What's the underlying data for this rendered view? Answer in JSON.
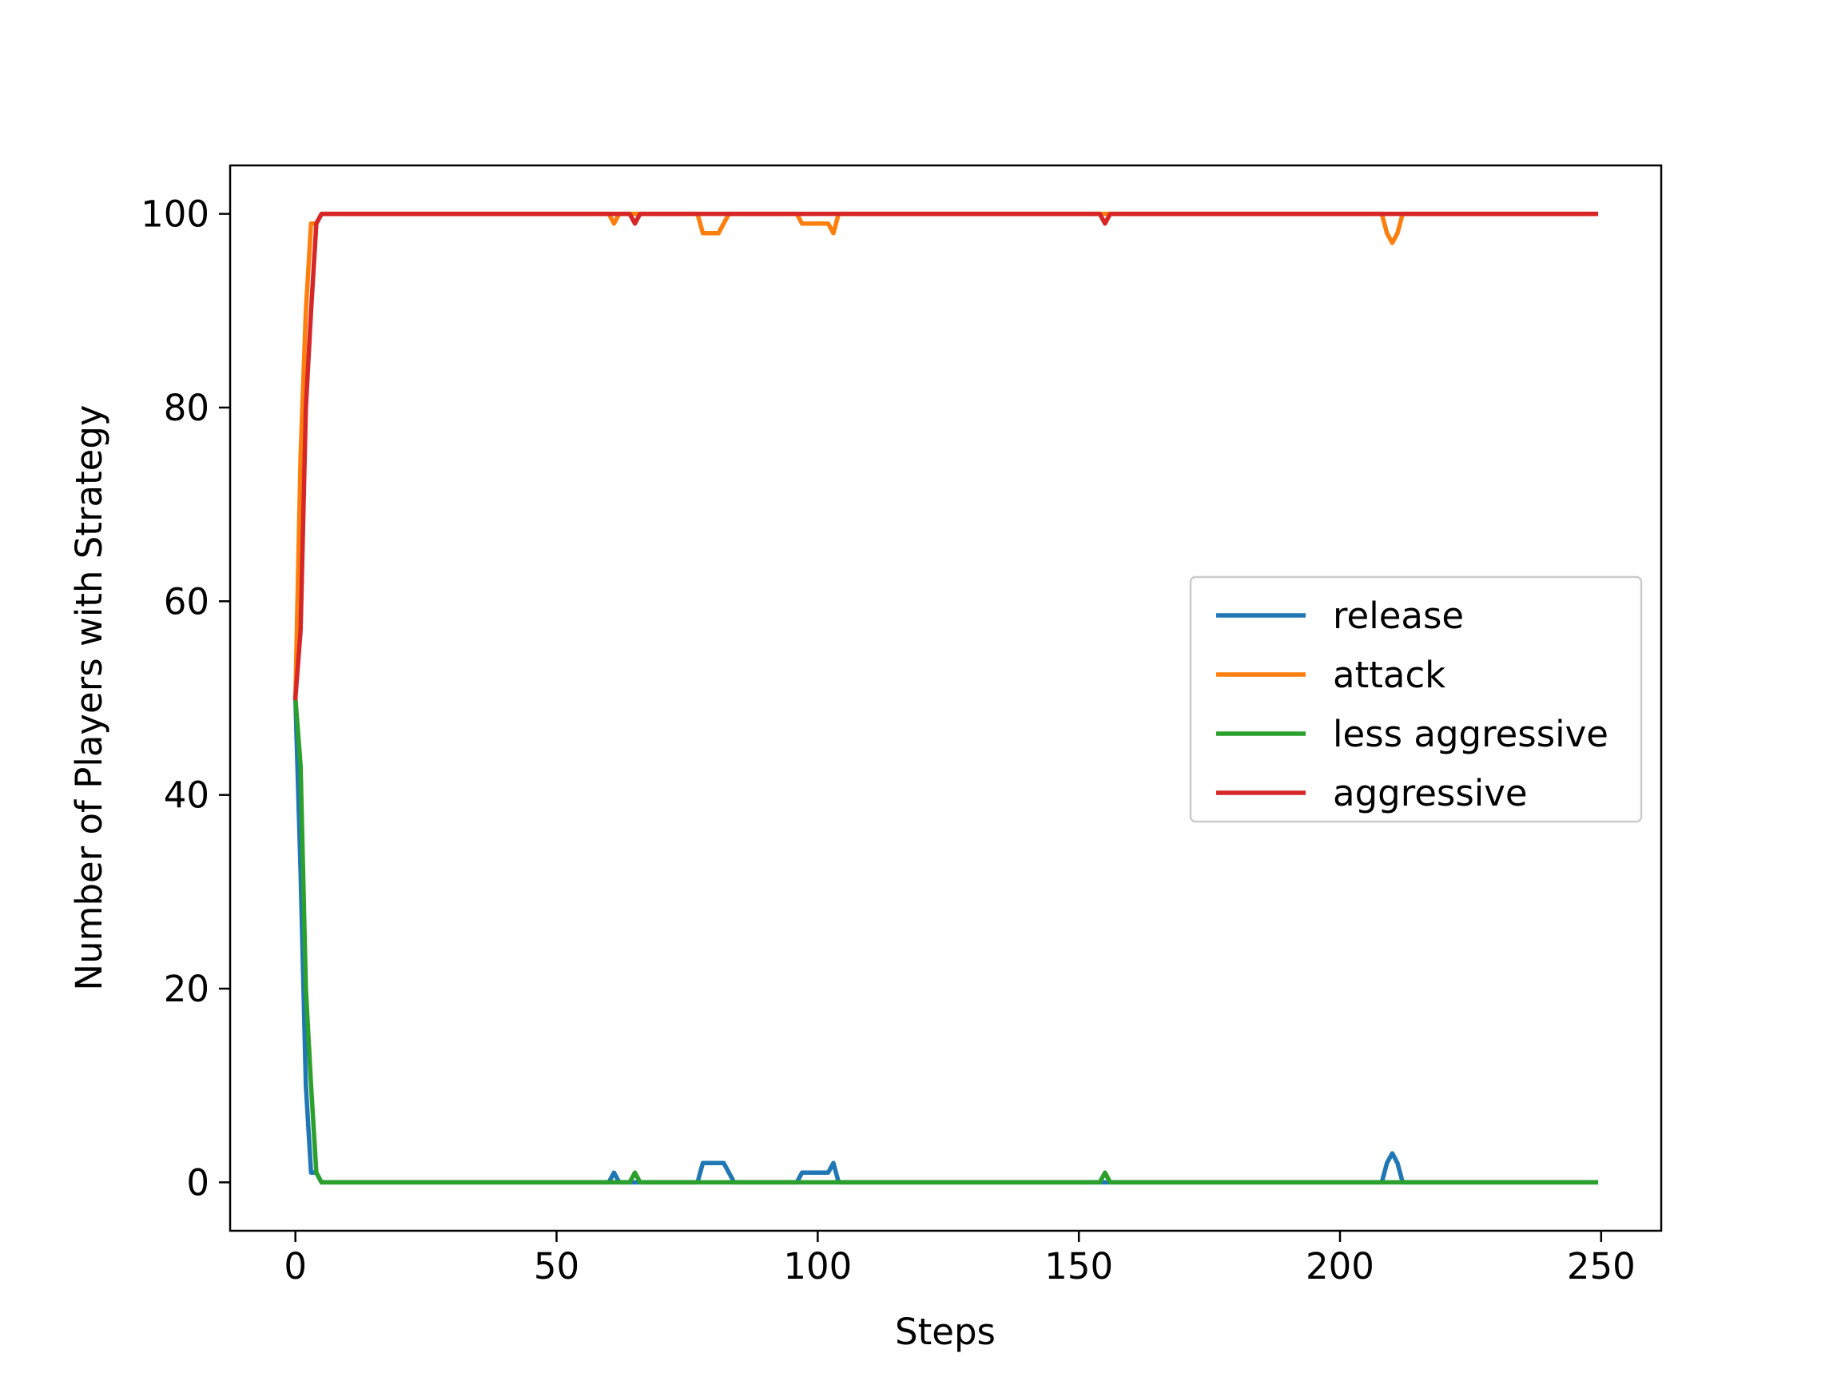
{
  "chart_data": {
    "type": "line",
    "xlabel": "Steps",
    "ylabel": "Number of Players with Strategy",
    "xlim": [
      -12.5,
      261.5
    ],
    "ylim": [
      -5,
      105
    ],
    "xticks": [
      0,
      50,
      100,
      150,
      200,
      250
    ],
    "yticks": [
      0,
      20,
      40,
      60,
      80,
      100
    ],
    "legend_position": "center-right",
    "grid": false,
    "series": [
      {
        "name": "release",
        "color": "#1f77b4",
        "points": [
          [
            0,
            50
          ],
          [
            1,
            32
          ],
          [
            2,
            10
          ],
          [
            3,
            1
          ],
          [
            4,
            1
          ],
          [
            5,
            0
          ],
          [
            60,
            0
          ],
          [
            61,
            1
          ],
          [
            62,
            0
          ],
          [
            77,
            0
          ],
          [
            78,
            2
          ],
          [
            82,
            2
          ],
          [
            84,
            0
          ],
          [
            96,
            0
          ],
          [
            97,
            1
          ],
          [
            102,
            1
          ],
          [
            103,
            2
          ],
          [
            104,
            0
          ],
          [
            208,
            0
          ],
          [
            209,
            2
          ],
          [
            210,
            3
          ],
          [
            211,
            2
          ],
          [
            212,
            0
          ],
          [
            249,
            0
          ]
        ]
      },
      {
        "name": "attack",
        "color": "#ff7f0e",
        "points": [
          [
            0,
            50
          ],
          [
            1,
            75
          ],
          [
            2,
            90
          ],
          [
            3,
            99
          ],
          [
            4,
            99
          ],
          [
            5,
            100
          ],
          [
            60,
            100
          ],
          [
            61,
            99
          ],
          [
            62,
            100
          ],
          [
            77,
            100
          ],
          [
            78,
            98
          ],
          [
            81,
            98
          ],
          [
            83,
            100
          ],
          [
            96,
            100
          ],
          [
            97,
            99
          ],
          [
            102,
            99
          ],
          [
            103,
            98
          ],
          [
            104,
            100
          ],
          [
            208,
            100
          ],
          [
            209,
            98
          ],
          [
            210,
            97
          ],
          [
            211,
            98
          ],
          [
            212,
            100
          ],
          [
            249,
            100
          ]
        ]
      },
      {
        "name": "less aggressive",
        "color": "#2ca02c",
        "points": [
          [
            0,
            50
          ],
          [
            1,
            43
          ],
          [
            2,
            20
          ],
          [
            3,
            10
          ],
          [
            4,
            1
          ],
          [
            5,
            0
          ],
          [
            64,
            0
          ],
          [
            65,
            1
          ],
          [
            66,
            0
          ],
          [
            154,
            0
          ],
          [
            155,
            1
          ],
          [
            156,
            0
          ],
          [
            249,
            0
          ]
        ]
      },
      {
        "name": "aggressive",
        "color": "#d62728",
        "points": [
          [
            0,
            50
          ],
          [
            1,
            57
          ],
          [
            2,
            80
          ],
          [
            3,
            90
          ],
          [
            4,
            99
          ],
          [
            5,
            100
          ],
          [
            64,
            100
          ],
          [
            65,
            99
          ],
          [
            66,
            100
          ],
          [
            154,
            100
          ],
          [
            155,
            99
          ],
          [
            156,
            100
          ],
          [
            249,
            100
          ]
        ]
      }
    ]
  }
}
